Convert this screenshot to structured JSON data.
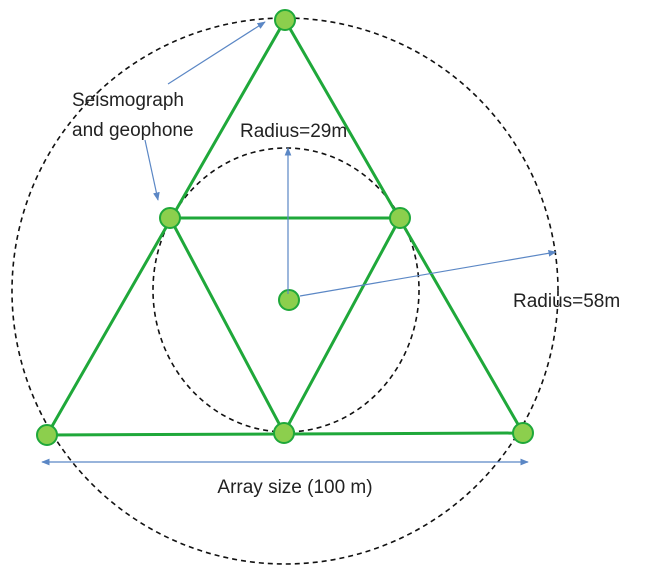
{
  "labels": {
    "sensor": [
      "Seismograph",
      "and geophone"
    ],
    "inner_radius": "Radius=29m",
    "outer_radius": "Radius=58m",
    "array_size": "Array size (100 m)"
  }
}
